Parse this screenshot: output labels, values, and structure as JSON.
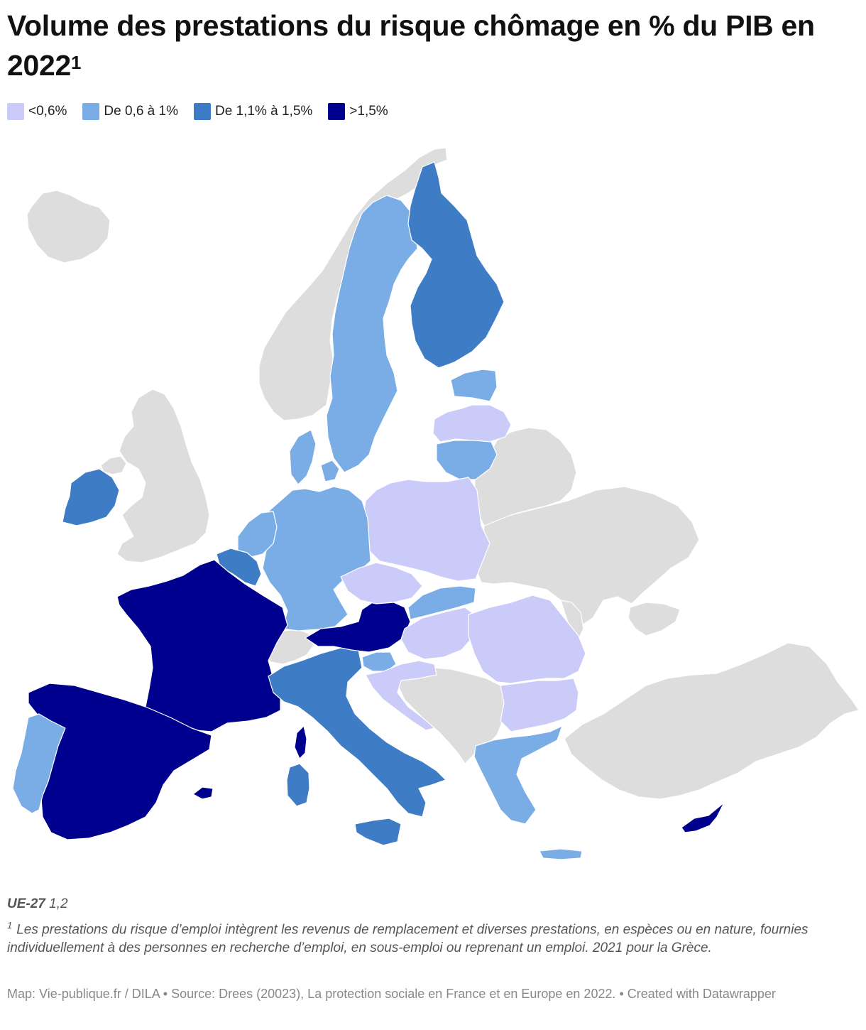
{
  "title": "Volume des prestations du risque chômage en % du PIB en 2022",
  "title_note_marker": "1",
  "legend": [
    {
      "label": "<0,6%",
      "color": "#cbcbf9"
    },
    {
      "label": "De 0,6 à 1%",
      "color": "#7aade6"
    },
    {
      "label": "De 1,1% à 1,5%",
      "color": "#3f7cc6"
    },
    {
      "label": ">1,5%",
      "color": "#00008f"
    }
  ],
  "no_data_color": "#dddddd",
  "countries": {
    "france": ">1,5%",
    "spain": ">1,5%",
    "austria": ">1,5%",
    "cyprus": ">1,5%",
    "finland": "De 1,1% à 1,5%",
    "ireland": "De 1,1% à 1,5%",
    "italy": "De 1,1% à 1,5%",
    "belgium": "De 1,1% à 1,5%",
    "sweden": "De 0,6 à 1%",
    "germany": "De 0,6 à 1%",
    "netherlands": "De 0,6 à 1%",
    "denmark": "De 0,6 à 1%",
    "estonia": "De 0,6 à 1%",
    "lithuania": "De 0,6 à 1%",
    "portugal": "De 0,6 à 1%",
    "greece": "De 0,6 à 1%",
    "slovakia": "De 0,6 à 1%",
    "slovenia": "De 0,6 à 1%",
    "latvia": "<0,6%",
    "poland": "<0,6%",
    "czechia": "<0,6%",
    "hungary": "<0,6%",
    "romania": "<0,6%",
    "bulgaria": "<0,6%",
    "croatia": "<0,6%"
  },
  "eu_label": "UE-27",
  "eu_value": "1,2",
  "footnote_marker": "1",
  "footnote": "Les prestations du risque d’emploi intègrent les revenus de remplacement et diverses prestations, en espèces ou en nature, fournies individuellement à des personnes en recherche d’emploi, en sous-emploi ou reprenant un emploi. 2021 pour la Grèce.",
  "source": "Map: Vie-publique.fr / DILA • Source: Drees (20023), La protection sociale en France et en Europe en 2022. • Created with Datawrapper"
}
